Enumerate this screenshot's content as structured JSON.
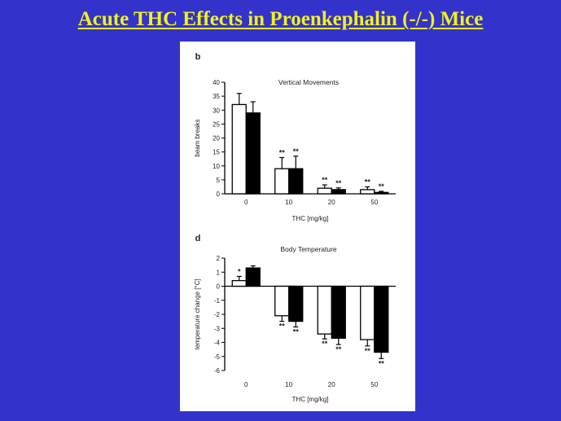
{
  "slide": {
    "title": "Acute THC Effects in Proenkephalin (-/-) Mice",
    "title_color": "#f2f21a",
    "background_color": "#3333cc"
  },
  "chart_data": [
    {
      "type": "bar",
      "panel_label": "b",
      "title": "Vertical Movements",
      "xlabel": "THC [mg/kg]",
      "ylabel": "beam breaks",
      "categories": [
        "0",
        "10",
        "20",
        "50"
      ],
      "ylim": [
        0,
        40
      ],
      "yticks": [
        0,
        5,
        10,
        15,
        20,
        25,
        30,
        35,
        40
      ],
      "series": [
        {
          "fill": "#ffffff",
          "values": [
            32,
            9,
            2,
            1.5
          ],
          "errors": [
            4,
            4,
            1.2,
            1
          ],
          "annotations": [
            "",
            "**",
            "**",
            "**"
          ]
        },
        {
          "fill": "#000000",
          "values": [
            29,
            9,
            1.5,
            0.5
          ],
          "errors": [
            4,
            4.5,
            0.6,
            0.4
          ],
          "annotations": [
            "",
            "**",
            "**",
            "**"
          ]
        }
      ],
      "grid": false,
      "legend": "none"
    },
    {
      "type": "bar",
      "panel_label": "d",
      "title": "Body Temperature",
      "xlabel": "THC [mg/kg]",
      "ylabel": "temperature change [°C]",
      "categories": [
        "0",
        "10",
        "20",
        "50"
      ],
      "ylim": [
        -6,
        2
      ],
      "yticks": [
        -6,
        -5,
        -4,
        -3,
        -2,
        -1,
        0,
        1,
        2
      ],
      "series": [
        {
          "fill": "#ffffff",
          "values": [
            0.4,
            -2.1,
            -3.4,
            -3.8
          ],
          "errors": [
            0.3,
            0.4,
            0.35,
            0.45
          ],
          "annotations": [
            "*",
            "**",
            "**",
            "**"
          ]
        },
        {
          "fill": "#000000",
          "values": [
            1.3,
            -2.5,
            -3.7,
            -4.7
          ],
          "errors": [
            0.15,
            0.4,
            0.45,
            0.45
          ],
          "annotations": [
            "",
            "**",
            "**",
            "**"
          ]
        }
      ],
      "grid": false,
      "legend": "none"
    }
  ]
}
